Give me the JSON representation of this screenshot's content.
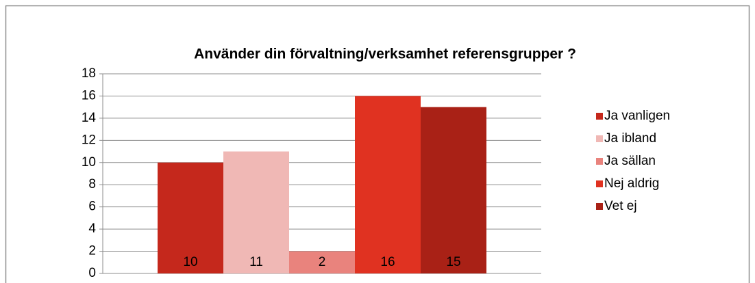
{
  "chart_data": {
    "type": "bar",
    "title": "Använder din förvaltning/verksamhet referensgrupper ?",
    "categories": [
      null
    ],
    "series": [
      {
        "name": "Ja vanligen",
        "color": "#c5281c",
        "values": [
          10
        ]
      },
      {
        "name": "Ja ibland",
        "color": "#f0b8b5",
        "values": [
          11
        ]
      },
      {
        "name": "Ja sällan",
        "color": "#e9837d",
        "values": [
          2
        ]
      },
      {
        "name": "Nej aldrig",
        "color": "#e03221",
        "values": [
          16
        ]
      },
      {
        "name": "Vet ej",
        "color": "#a92116",
        "values": [
          15
        ]
      }
    ],
    "ylim": [
      0,
      18
    ],
    "yticks": [
      0,
      2,
      4,
      6,
      8,
      10,
      12,
      14,
      16,
      18
    ],
    "grid": true,
    "legend": "right"
  }
}
